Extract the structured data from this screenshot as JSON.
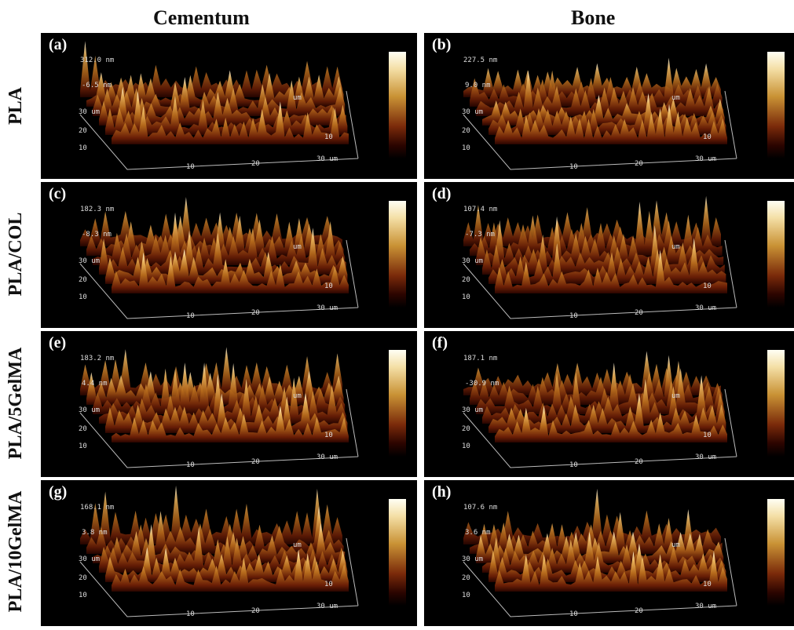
{
  "columns": {
    "left": "Cementum",
    "right": "Bone"
  },
  "rows": [
    "PLA",
    "PLA/COL",
    "PLA/5GelMA",
    "PLA/10GelMA"
  ],
  "axis_ticks": {
    "y_top": "30 um",
    "y_mid": "20",
    "y_low": "10",
    "x_a": "10",
    "x_b": "20",
    "x_end": "30 um",
    "r_um": "um",
    "r_10": "10"
  },
  "colorbar": {
    "colors": [
      "#fffff4",
      "#f4dfa6",
      "#c99235",
      "#7a2a0a",
      "#2a0400",
      "#000000"
    ]
  },
  "panels": [
    {
      "id": "a",
      "label": "(a)",
      "zmax": "312.0 nm",
      "zmid": "-6.5 nm"
    },
    {
      "id": "b",
      "label": "(b)",
      "zmax": "227.5 nm",
      "zmid": "9.0 nm"
    },
    {
      "id": "c",
      "label": "(c)",
      "zmax": "182.3 nm",
      "zmid": "-8.3 nm"
    },
    {
      "id": "d",
      "label": "(d)",
      "zmax": "107.4 nm",
      "zmid": "-7.3 nm"
    },
    {
      "id": "e",
      "label": "(e)",
      "zmax": "183.2 nm",
      "zmid": "4.4 nm"
    },
    {
      "id": "f",
      "label": "(f)",
      "zmax": "187.1 nm",
      "zmid": "-30.9 nm"
    },
    {
      "id": "g",
      "label": "(g)",
      "zmax": "168.1 nm",
      "zmid": "3.8 nm"
    },
    {
      "id": "h",
      "label": "(h)",
      "zmax": "107.6 nm",
      "zmid": "3.6 nm"
    }
  ]
}
